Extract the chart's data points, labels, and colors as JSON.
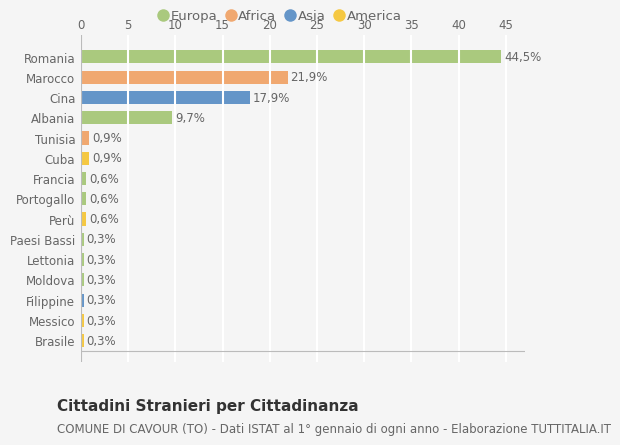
{
  "countries": [
    "Romania",
    "Marocco",
    "Cina",
    "Albania",
    "Tunisia",
    "Cuba",
    "Francia",
    "Portogallo",
    "Perù",
    "Paesi Bassi",
    "Lettonia",
    "Moldova",
    "Filippine",
    "Messico",
    "Brasile"
  ],
  "values": [
    44.5,
    21.9,
    17.9,
    9.7,
    0.9,
    0.9,
    0.6,
    0.6,
    0.6,
    0.3,
    0.3,
    0.3,
    0.3,
    0.3,
    0.3
  ],
  "labels": [
    "44,5%",
    "21,9%",
    "17,9%",
    "9,7%",
    "0,9%",
    "0,9%",
    "0,6%",
    "0,6%",
    "0,6%",
    "0,3%",
    "0,3%",
    "0,3%",
    "0,3%",
    "0,3%",
    "0,3%"
  ],
  "colors": [
    "#aac97e",
    "#f0a870",
    "#6495c8",
    "#aac97e",
    "#f0a870",
    "#f5c842",
    "#aac97e",
    "#aac97e",
    "#f5c842",
    "#aac97e",
    "#aac97e",
    "#aac97e",
    "#6495c8",
    "#f5c842",
    "#f5c842"
  ],
  "legend_labels": [
    "Europa",
    "Africa",
    "Asia",
    "America"
  ],
  "legend_colors": [
    "#aac97e",
    "#f0a870",
    "#6495c8",
    "#f5c842"
  ],
  "title": "Cittadini Stranieri per Cittadinanza",
  "subtitle": "COMUNE DI CAVOUR (TO) - Dati ISTAT al 1° gennaio di ogni anno - Elaborazione TUTTITALIA.IT",
  "xlim": [
    0,
    47
  ],
  "xticks": [
    0,
    5,
    10,
    15,
    20,
    25,
    30,
    35,
    40,
    45
  ],
  "background_color": "#f5f5f5",
  "grid_color": "#ffffff",
  "bar_height": 0.65,
  "title_fontsize": 11,
  "subtitle_fontsize": 8.5,
  "label_fontsize": 8.5,
  "tick_fontsize": 8.5,
  "legend_fontsize": 9.5
}
